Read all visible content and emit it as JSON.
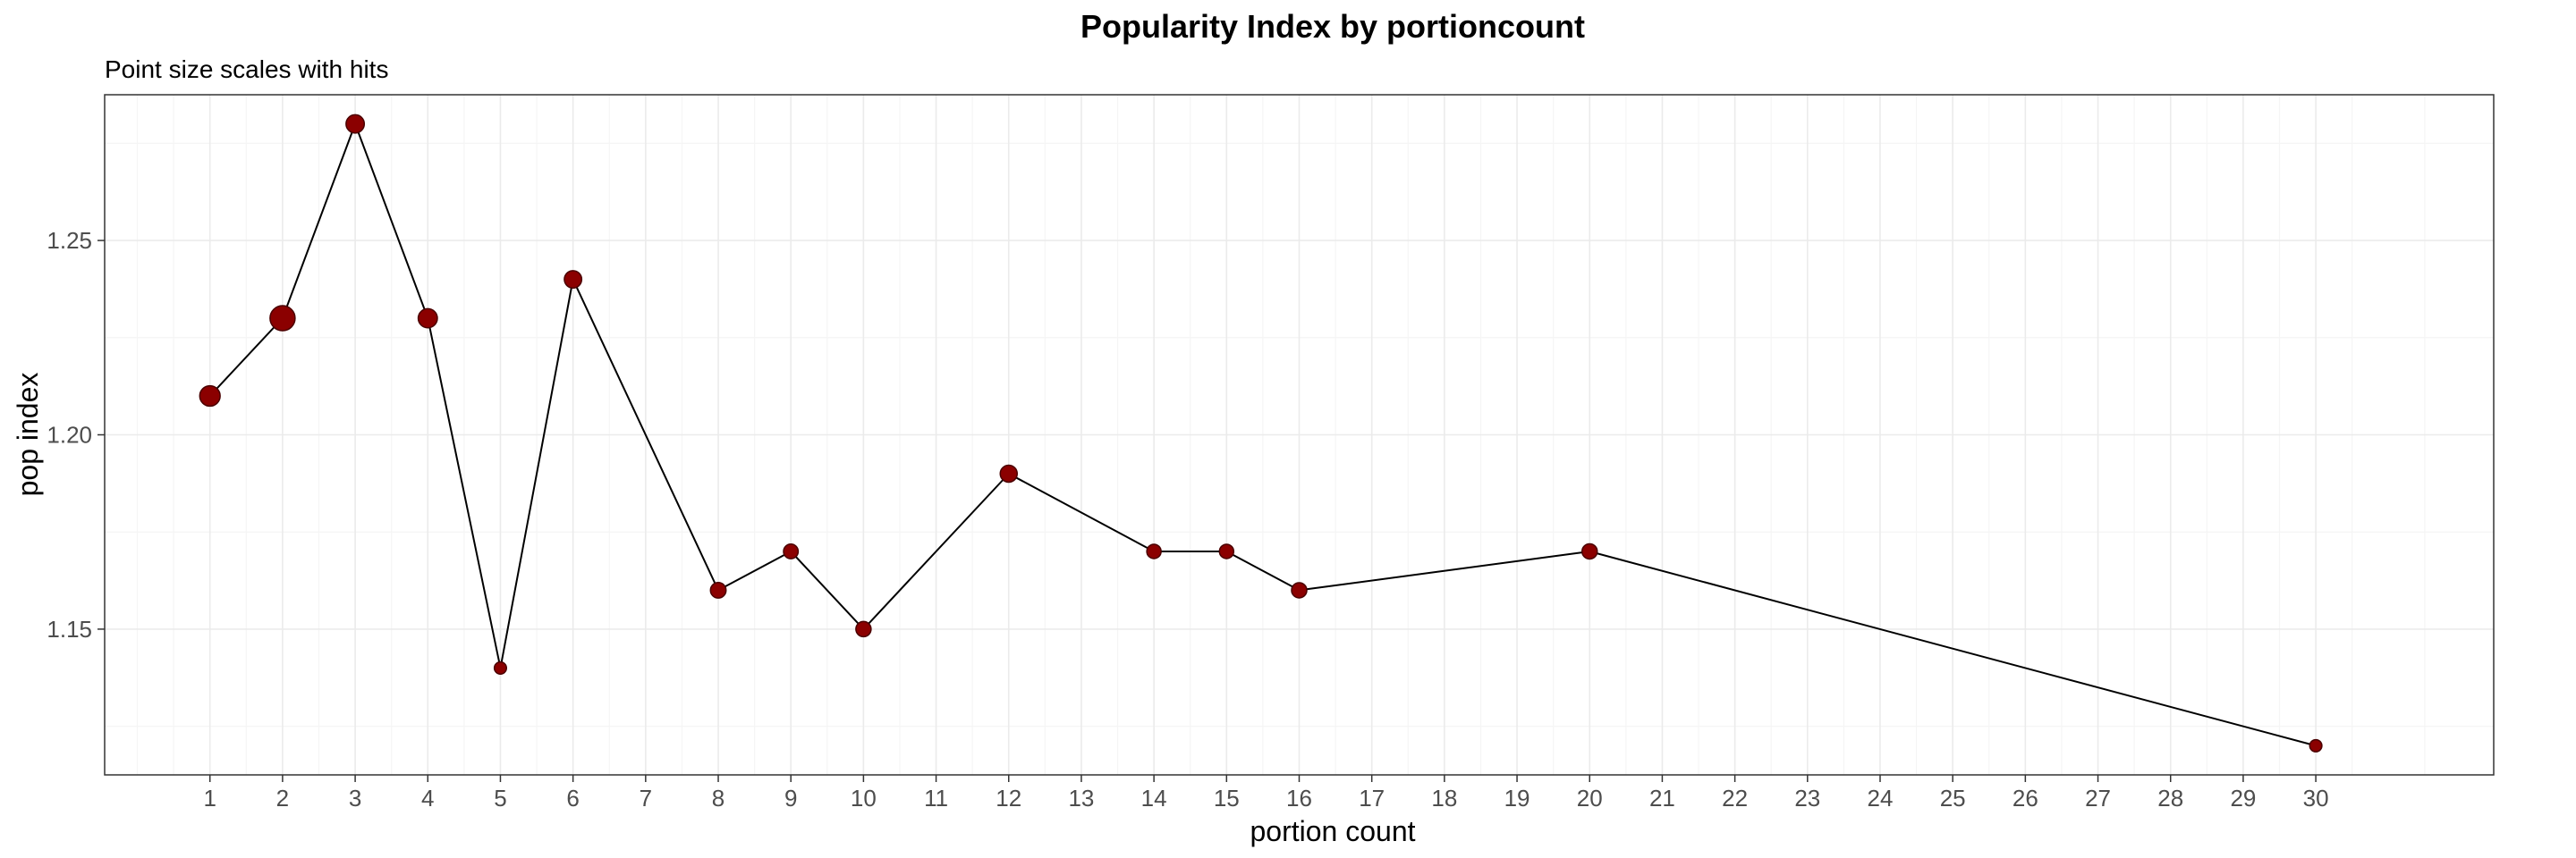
{
  "chart_data": {
    "type": "scatter",
    "title": "Popularity Index by portioncount",
    "subtitle": "Point size scales with hits",
    "xlabel": "portion count",
    "ylabel": "pop index",
    "xlim": [
      -0.45,
      32.45
    ],
    "ylim": [
      1.1125,
      1.2875
    ],
    "x_ticks": [
      1,
      2,
      3,
      4,
      5,
      6,
      7,
      8,
      9,
      10,
      11,
      12,
      13,
      14,
      15,
      16,
      17,
      18,
      19,
      20,
      21,
      22,
      23,
      24,
      25,
      26,
      27,
      28,
      29,
      30
    ],
    "x_tick_labels": [
      "1",
      "2",
      "3",
      "4",
      "5",
      "6",
      "7",
      "8",
      "9",
      "10",
      "11",
      "12",
      "13",
      "14",
      "15",
      "16",
      "17",
      "18",
      "19",
      "20",
      "21",
      "22",
      "23",
      "24",
      "25",
      "26",
      "27",
      "28",
      "29",
      "30"
    ],
    "y_ticks": [
      1.15,
      1.2,
      1.25
    ],
    "y_tick_labels": [
      "1.15",
      "1.20",
      "1.25"
    ],
    "y_minor_ticks": [
      1.125,
      1.175,
      1.225,
      1.275
    ],
    "grid": true,
    "theme": "bw",
    "series": [
      {
        "x": [
          1,
          2,
          3,
          4,
          5,
          6,
          8,
          9,
          10,
          12,
          14,
          15,
          16,
          20,
          30
        ],
        "y": [
          1.21,
          1.23,
          1.28,
          1.23,
          1.14,
          1.24,
          1.16,
          1.17,
          1.15,
          1.19,
          1.17,
          1.17,
          1.16,
          1.17,
          1.12
        ],
        "relative_size": [
          0.55,
          1.0,
          0.38,
          0.45,
          0.08,
          0.32,
          0.22,
          0.18,
          0.2,
          0.3,
          0.16,
          0.16,
          0.2,
          0.2,
          0.08
        ]
      }
    ],
    "colors": {
      "point_fill": "#8b0000",
      "point_stroke": "#4a0000",
      "line": "#000000",
      "grid_major": "#ebebeb",
      "grid_minor": "#f5f5f5",
      "panel_border": "#333333"
    }
  }
}
